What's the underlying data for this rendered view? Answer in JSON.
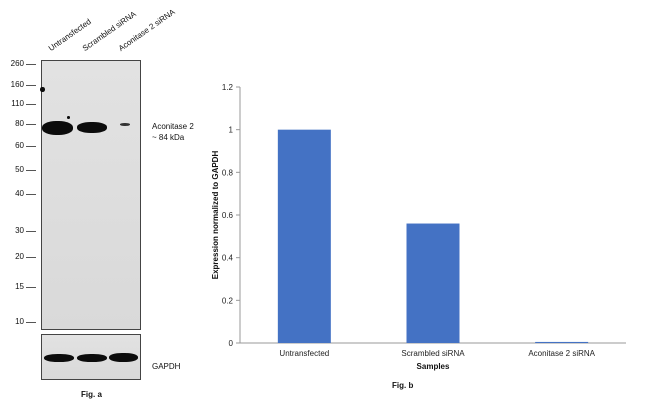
{
  "fig_a": {
    "lane_labels": [
      "Untransfected",
      "Scrambled siRNA",
      "Aconitase 2 siRNA"
    ],
    "mw_markers": [
      "260",
      "160",
      "110",
      "80",
      "60",
      "50",
      "40",
      "30",
      "20",
      "15",
      "10"
    ],
    "band_label_line1": "Aconitase 2",
    "band_label_line2": "~ 84 kDa",
    "loading_label": "GAPDH",
    "caption": "Fig. a"
  },
  "chart_data": {
    "type": "bar",
    "categories": [
      "Untransfected",
      "Scrambled siRNA",
      "Aconitase 2 siRNA"
    ],
    "values": [
      1.0,
      0.56,
      0.005
    ],
    "title": "",
    "xlabel": "Samples",
    "ylabel": "Expression normalized to GAPDH",
    "ylim": [
      0,
      1.2
    ],
    "yticks": [
      "0",
      "0.2",
      "0.4",
      "0.6",
      "0.8",
      "1",
      "1.2"
    ],
    "grid": false,
    "bar_color": "#4472C4",
    "caption": "Fig. b"
  }
}
